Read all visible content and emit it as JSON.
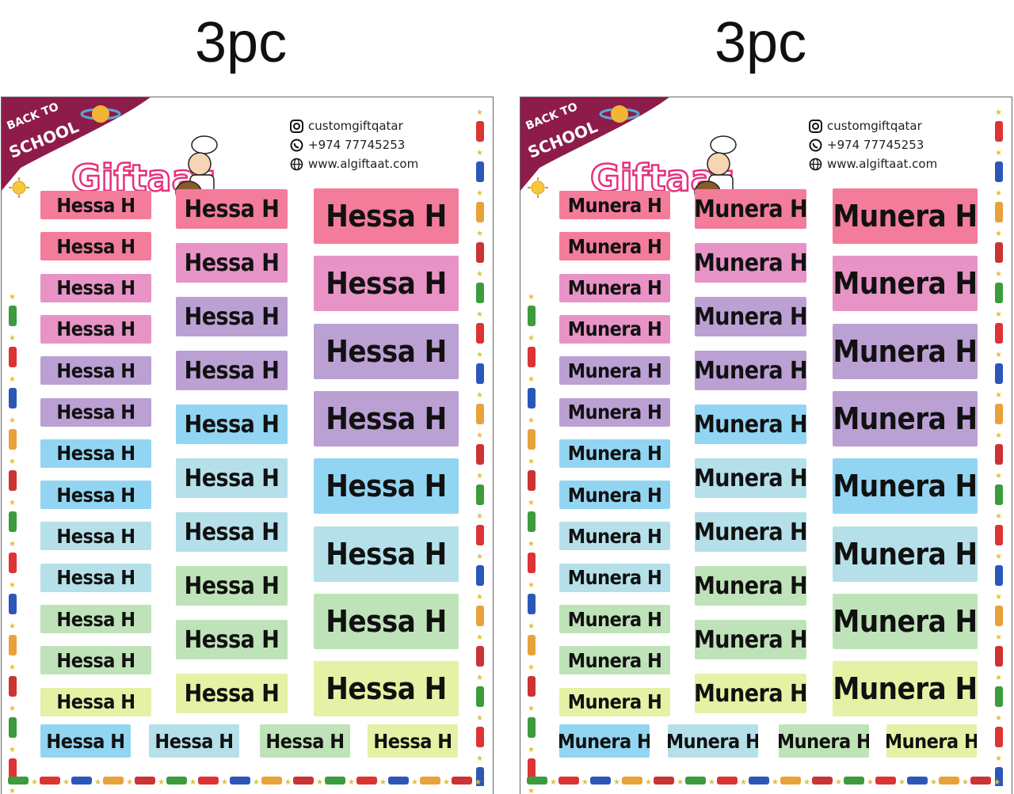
{
  "sheets": [
    {
      "quantity": "3pc",
      "name": "Hessa H",
      "banner_line1": "BACK TO",
      "banner_line2": "SCHOOL",
      "brand": "Giftaat",
      "instagram": "customgiftqatar",
      "whatsapp": "+974 77745253",
      "website": "www.algiftaat.com"
    },
    {
      "quantity": "3pc",
      "name": "Munera H",
      "banner_line1": "BACK TO",
      "banner_line2": "SCHOOL",
      "brand": "Giftaat",
      "instagram": "customgiftqatar",
      "whatsapp": "+974 77745253",
      "website": "www.algiftaat.com"
    }
  ],
  "colors": {
    "pink": "#f37c9b",
    "rose": "#e893c6",
    "lavender": "#bba0d4",
    "blue": "#92d5f2",
    "lightblue": "#b5e0ea",
    "green": "#bfe3b8",
    "yellow": "#e5f1a4",
    "banner": "#8e1c4a"
  },
  "small_label_colors": [
    "pink",
    "pink",
    "rose",
    "rose",
    "lavender",
    "lavender",
    "blue",
    "blue",
    "lightblue",
    "lightblue",
    "green",
    "green",
    "yellow"
  ],
  "medium_label_colors": [
    "pink",
    "rose",
    "lavender",
    "lavender",
    "blue",
    "lightblue",
    "lightblue",
    "green",
    "green",
    "yellow"
  ],
  "large_label_colors": [
    "pink",
    "rose",
    "lavender",
    "lavender",
    "blue",
    "lightblue",
    "green",
    "yellow"
  ],
  "bottom_label_colors": [
    "blue",
    "lightblue",
    "green",
    "yellow"
  ]
}
